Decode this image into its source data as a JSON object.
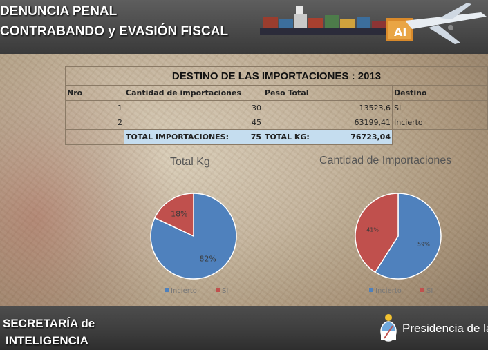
{
  "header": {
    "title_line1": "DENUNCIA PENAL",
    "title_line2": "CONTRABANDO y EVASIÓN FISCAL"
  },
  "table": {
    "title": "DESTINO DE LAS IMPORTACIONES : 2013",
    "columns": [
      "Nro",
      "Cantidad de importaciones",
      "Peso Total",
      "Destino"
    ],
    "rows": [
      {
        "nro": "1",
        "cantidad": "30",
        "peso": "13523,6",
        "destino": "SI"
      },
      {
        "nro": "2",
        "cantidad": "45",
        "peso": "63199,41",
        "destino": "Incierto"
      }
    ],
    "total_imp_label": "TOTAL IMPORTACIONES:",
    "total_imp_value": "75",
    "total_kg_label": "TOTAL KG:",
    "total_kg_value": "76723,04"
  },
  "chart_data": [
    {
      "type": "pie",
      "title": "Total Kg",
      "categories": [
        "Incierto",
        "SI"
      ],
      "values": [
        82,
        18
      ],
      "labels": [
        "82%",
        "18%"
      ],
      "colors": [
        "#4f81bd",
        "#c0504d"
      ],
      "legend": "bottom"
    },
    {
      "type": "pie",
      "title": "Cantidad de Importaciones",
      "categories": [
        "Incierto",
        "SI"
      ],
      "values": [
        59,
        41
      ],
      "labels": [
        "59%",
        "41%"
      ],
      "colors": [
        "#4f81bd",
        "#c0504d"
      ],
      "legend": "bottom"
    }
  ],
  "footer": {
    "line1": "SECRETARÍA de",
    "line2": "INTELIGENCIA",
    "presidency": "Presidencia de la"
  }
}
